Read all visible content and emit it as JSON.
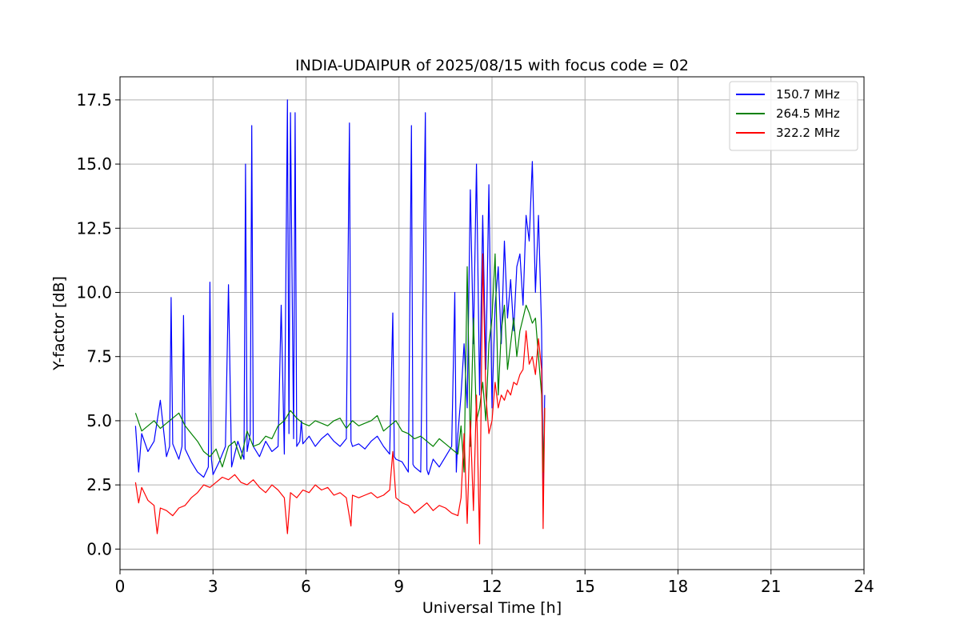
{
  "chart_data": {
    "type": "line",
    "title": "INDIA-UDAIPUR of 2025/08/15 with focus code = 02",
    "xlabel": "Universal Time [h]",
    "ylabel": "Y-factor [dB]",
    "xlim": [
      0,
      24
    ],
    "ylim": [
      -0.8,
      18.4
    ],
    "xticks": [
      0,
      3,
      6,
      9,
      12,
      15,
      18,
      21,
      24
    ],
    "xtick_labels": [
      "0",
      "3",
      "6",
      "9",
      "12",
      "15",
      "18",
      "21",
      "24"
    ],
    "yticks": [
      0.0,
      2.5,
      5.0,
      7.5,
      10.0,
      12.5,
      15.0,
      17.5
    ],
    "ytick_labels": [
      "0.0",
      "2.5",
      "5.0",
      "7.5",
      "10.0",
      "12.5",
      "15.0",
      "17.5"
    ],
    "grid": true,
    "legend_position": "top-right",
    "series": [
      {
        "name": "150.7 MHz",
        "color": "#0000ff",
        "x": [
          0.5,
          0.6,
          0.7,
          0.9,
          1.1,
          1.3,
          1.5,
          1.6,
          1.65,
          1.7,
          1.9,
          2.0,
          2.05,
          2.1,
          2.3,
          2.5,
          2.7,
          2.85,
          2.9,
          2.95,
          3.0,
          3.2,
          3.4,
          3.5,
          3.6,
          3.8,
          4.0,
          4.05,
          4.1,
          4.2,
          4.25,
          4.3,
          4.5,
          4.7,
          4.9,
          5.1,
          5.2,
          5.3,
          5.4,
          5.45,
          5.5,
          5.6,
          5.65,
          5.7,
          5.8,
          5.85,
          5.9,
          6.1,
          6.3,
          6.5,
          6.7,
          6.9,
          7.1,
          7.3,
          7.4,
          7.45,
          7.5,
          7.7,
          7.9,
          8.1,
          8.3,
          8.5,
          8.7,
          8.8,
          8.85,
          8.9,
          9.1,
          9.3,
          9.4,
          9.45,
          9.5,
          9.7,
          9.85,
          9.9,
          9.95,
          10.1,
          10.3,
          10.5,
          10.7,
          10.8,
          10.85,
          10.9,
          11.0,
          11.1,
          11.2,
          11.3,
          11.4,
          11.5,
          11.6,
          11.7,
          11.8,
          11.9,
          12.0,
          12.1,
          12.2,
          12.3,
          12.4,
          12.5,
          12.6,
          12.7,
          12.8,
          12.9,
          13.0,
          13.1,
          13.2,
          13.3,
          13.4,
          13.5,
          13.6,
          13.65,
          13.7
        ],
        "y": [
          4.8,
          3.0,
          4.5,
          3.8,
          4.2,
          5.8,
          3.6,
          4.0,
          9.8,
          4.1,
          3.5,
          4.0,
          9.1,
          3.9,
          3.4,
          3.0,
          2.8,
          3.2,
          10.4,
          3.5,
          2.9,
          3.4,
          4.0,
          10.3,
          3.2,
          4.2,
          3.5,
          15.0,
          3.8,
          4.5,
          16.5,
          4.0,
          3.6,
          4.2,
          3.8,
          4.0,
          9.5,
          3.7,
          17.5,
          4.5,
          17.0,
          4.3,
          17.0,
          4.0,
          4.2,
          5.0,
          4.1,
          4.4,
          4.0,
          4.3,
          4.5,
          4.2,
          4.0,
          4.3,
          16.6,
          4.2,
          4.0,
          4.1,
          3.9,
          4.2,
          4.4,
          4.0,
          3.7,
          9.2,
          3.6,
          3.5,
          3.4,
          3.0,
          16.5,
          3.3,
          3.2,
          3.0,
          17.0,
          3.1,
          2.9,
          3.5,
          3.2,
          3.6,
          4.0,
          10.0,
          3.0,
          4.5,
          6.0,
          8.0,
          5.5,
          14.0,
          8.0,
          15.0,
          6.0,
          13.0,
          7.0,
          14.2,
          5.5,
          9.5,
          11.0,
          8.0,
          12.0,
          9.0,
          10.5,
          8.5,
          11.0,
          11.5,
          9.5,
          13.0,
          12.0,
          15.1,
          10.0,
          13.0,
          8.5,
          2.5,
          6.0
        ]
      },
      {
        "name": "264.5 MHz",
        "color": "#008000",
        "x": [
          0.5,
          0.7,
          0.9,
          1.1,
          1.3,
          1.5,
          1.7,
          1.9,
          2.1,
          2.3,
          2.5,
          2.7,
          2.9,
          3.1,
          3.3,
          3.5,
          3.7,
          3.9,
          4.1,
          4.3,
          4.5,
          4.7,
          4.9,
          5.1,
          5.3,
          5.5,
          5.7,
          5.9,
          6.1,
          6.3,
          6.5,
          6.7,
          6.9,
          7.1,
          7.3,
          7.5,
          7.7,
          7.9,
          8.1,
          8.3,
          8.5,
          8.7,
          8.9,
          9.1,
          9.3,
          9.5,
          9.7,
          9.9,
          10.1,
          10.3,
          10.5,
          10.7,
          10.9,
          11.0,
          11.1,
          11.2,
          11.3,
          11.4,
          11.5,
          11.6,
          11.7,
          11.8,
          11.9,
          12.0,
          12.1,
          12.2,
          12.3,
          12.4,
          12.5,
          12.6,
          12.7,
          12.8,
          12.9,
          13.0,
          13.1,
          13.2,
          13.3,
          13.4,
          13.5,
          13.6,
          13.65,
          13.7
        ],
        "y": [
          5.3,
          4.6,
          4.8,
          5.0,
          4.7,
          4.9,
          5.1,
          5.3,
          4.8,
          4.5,
          4.2,
          3.8,
          3.6,
          3.9,
          3.2,
          4.0,
          4.2,
          3.5,
          4.6,
          4.0,
          4.1,
          4.4,
          4.3,
          4.8,
          5.0,
          5.4,
          5.1,
          4.9,
          4.8,
          5.0,
          4.9,
          4.8,
          5.0,
          5.1,
          4.7,
          5.0,
          4.8,
          4.9,
          5.0,
          5.2,
          4.6,
          4.8,
          5.0,
          4.6,
          4.5,
          4.3,
          4.4,
          4.2,
          4.0,
          4.3,
          4.1,
          3.9,
          3.7,
          4.8,
          3.0,
          11.0,
          4.0,
          9.0,
          5.0,
          5.5,
          6.5,
          5.0,
          8.0,
          9.0,
          11.5,
          6.0,
          8.5,
          9.5,
          7.0,
          8.0,
          9.0,
          7.5,
          8.5,
          9.0,
          9.5,
          9.2,
          8.8,
          9.0,
          7.5,
          6.0,
          3.0,
          5.5
        ]
      },
      {
        "name": "322.2 MHz",
        "color": "#ff0000",
        "x": [
          0.5,
          0.6,
          0.7,
          0.9,
          1.1,
          1.2,
          1.3,
          1.5,
          1.7,
          1.9,
          2.1,
          2.3,
          2.5,
          2.7,
          2.9,
          3.1,
          3.3,
          3.5,
          3.7,
          3.9,
          4.1,
          4.3,
          4.5,
          4.7,
          4.9,
          5.1,
          5.3,
          5.4,
          5.5,
          5.7,
          5.9,
          6.1,
          6.3,
          6.5,
          6.7,
          6.9,
          7.1,
          7.3,
          7.45,
          7.5,
          7.7,
          7.9,
          8.1,
          8.3,
          8.5,
          8.7,
          8.8,
          8.9,
          9.1,
          9.3,
          9.5,
          9.7,
          9.9,
          10.1,
          10.3,
          10.5,
          10.7,
          10.9,
          11.0,
          11.1,
          11.2,
          11.3,
          11.4,
          11.5,
          11.6,
          11.7,
          11.8,
          11.9,
          12.0,
          12.1,
          12.2,
          12.3,
          12.4,
          12.5,
          12.6,
          12.7,
          12.8,
          12.9,
          13.0,
          13.1,
          13.2,
          13.3,
          13.4,
          13.5,
          13.6,
          13.65,
          13.7
        ],
        "y": [
          2.6,
          1.8,
          2.4,
          1.9,
          1.7,
          0.6,
          1.6,
          1.5,
          1.3,
          1.6,
          1.7,
          2.0,
          2.2,
          2.5,
          2.4,
          2.6,
          2.8,
          2.7,
          2.9,
          2.6,
          2.5,
          2.7,
          2.4,
          2.2,
          2.5,
          2.3,
          2.0,
          0.6,
          2.2,
          2.0,
          2.3,
          2.2,
          2.5,
          2.3,
          2.4,
          2.1,
          2.2,
          2.0,
          0.9,
          2.1,
          2.0,
          2.1,
          2.2,
          2.0,
          2.1,
          2.3,
          3.8,
          2.0,
          1.8,
          1.7,
          1.4,
          1.6,
          1.8,
          1.5,
          1.7,
          1.6,
          1.4,
          1.3,
          2.0,
          4.5,
          1.0,
          5.0,
          1.5,
          6.0,
          0.2,
          11.5,
          6.0,
          4.5,
          5.0,
          6.5,
          5.5,
          6.0,
          5.8,
          6.2,
          6.0,
          6.5,
          6.4,
          6.8,
          7.0,
          8.5,
          7.2,
          7.5,
          6.8,
          8.2,
          7.0,
          0.8,
          5.5
        ]
      }
    ]
  }
}
